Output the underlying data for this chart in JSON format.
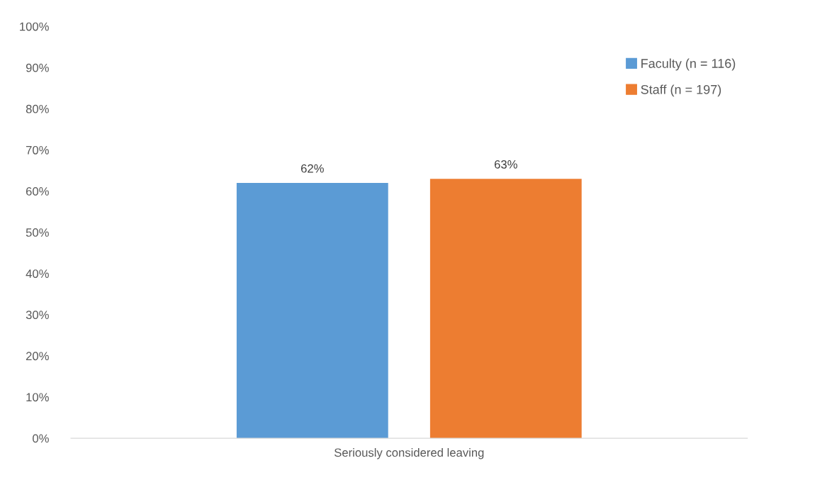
{
  "chart_data": {
    "type": "bar",
    "categories": [
      "Seriously considered leaving"
    ],
    "series": [
      {
        "name": "Faculty (n = 116)",
        "color": "#5b9bd5",
        "values": [
          62
        ],
        "value_labels": [
          "62%"
        ]
      },
      {
        "name": "Staff (n = 197)",
        "color": "#ed7d31",
        "values": [
          63
        ],
        "value_labels": [
          "63%"
        ]
      }
    ],
    "ylim": [
      0,
      100
    ],
    "yticks": [
      {
        "value": 0,
        "label": "0%"
      },
      {
        "value": 10,
        "label": "10%"
      },
      {
        "value": 20,
        "label": "20%"
      },
      {
        "value": 30,
        "label": "30%"
      },
      {
        "value": 40,
        "label": "40%"
      },
      {
        "value": 50,
        "label": "50%"
      },
      {
        "value": 60,
        "label": "60%"
      },
      {
        "value": 70,
        "label": "70%"
      },
      {
        "value": 80,
        "label": "80%"
      },
      {
        "value": 90,
        "label": "90%"
      },
      {
        "value": 100,
        "label": "100%"
      }
    ],
    "grid": false,
    "legend": "top right"
  }
}
